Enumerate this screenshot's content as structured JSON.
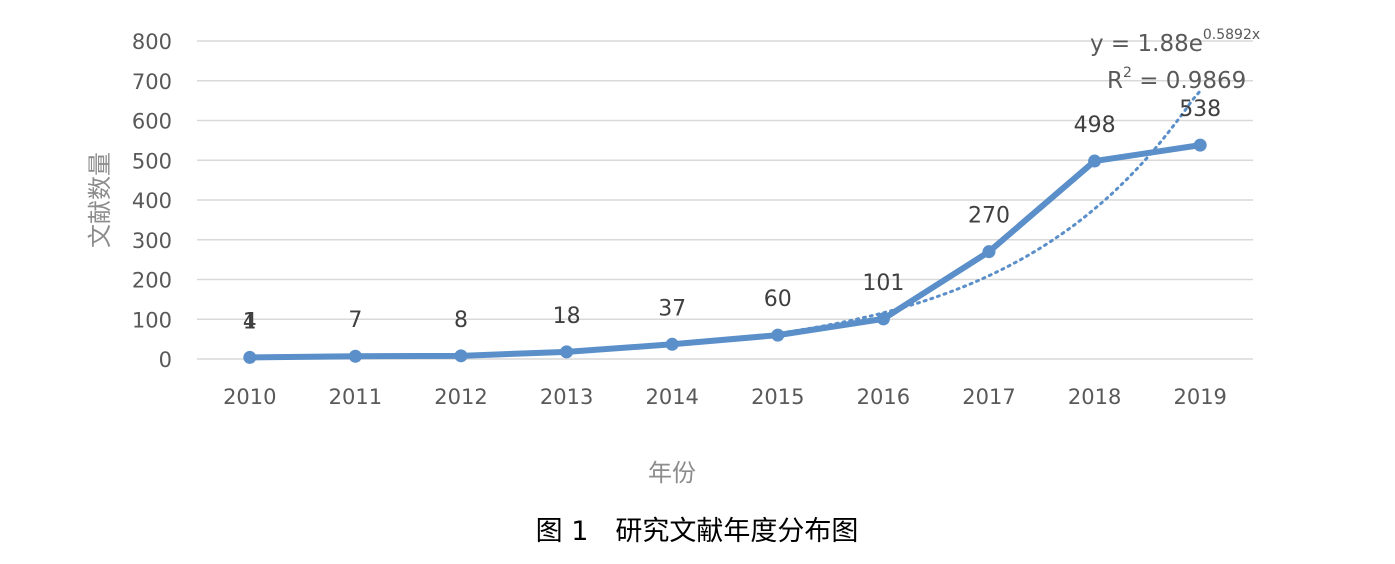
{
  "chart_data": {
    "type": "line",
    "categories": [
      "2010",
      "2011",
      "2012",
      "2013",
      "2014",
      "2015",
      "2016",
      "2017",
      "2018",
      "2019"
    ],
    "series": [
      {
        "values": [
          4,
          7,
          8,
          18,
          37,
          60,
          101,
          270,
          498,
          538
        ],
        "color": "#5b8fc9"
      }
    ],
    "data_labels": [
      "4",
      "7",
      "8",
      "18",
      "37",
      "60",
      "101",
      "270",
      "498",
      "538"
    ],
    "overlapping_label": "1",
    "trendline": {
      "type": "exponential",
      "a": 1.88,
      "b": 0.5892,
      "equation_prefix": "y = 1.88e",
      "equation_exponent": "0.5892x",
      "r2_prefix": "R",
      "r2_exponent": "2",
      "r2_suffix": " = 0.9869",
      "color": "#5b8fc9"
    },
    "ylim": [
      0,
      800
    ],
    "yticks": [
      "0",
      "100",
      "200",
      "300",
      "400",
      "500",
      "600",
      "700",
      "800"
    ],
    "ylabel": "文献数量",
    "xlabel": "年份",
    "grid": true,
    "caption": "图 1　研究文献年度分布图"
  }
}
